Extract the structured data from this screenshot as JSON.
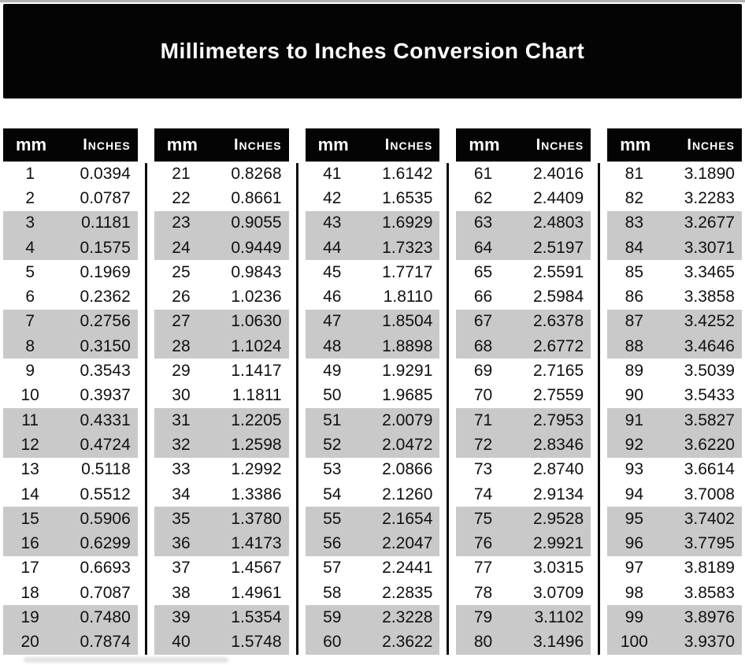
{
  "title": "Millimeters to Inches Conversion Chart",
  "table": {
    "col_mm": "mm",
    "col_inches": "Inches",
    "groups": []
  },
  "colors": {
    "banner_bg": "#040404",
    "header_bg": "#040404",
    "header_text": "#ffffff",
    "stripe_gray": "#c9c9c9",
    "text": "#111111"
  },
  "chart_data": {
    "type": "table",
    "title": "Millimeters to Inches Conversion Chart",
    "columns": [
      "mm",
      "Inches"
    ],
    "layout": "5 column-groups of 20 rows; rows shaded gray in pairs (rows 3-4, 7-8, 11-12, 15-16, 19-20 of each group)",
    "mm": [
      1,
      2,
      3,
      4,
      5,
      6,
      7,
      8,
      9,
      10,
      11,
      12,
      13,
      14,
      15,
      16,
      17,
      18,
      19,
      20,
      21,
      22,
      23,
      24,
      25,
      26,
      27,
      28,
      29,
      30,
      31,
      32,
      33,
      34,
      35,
      36,
      37,
      38,
      39,
      40,
      41,
      42,
      43,
      44,
      45,
      46,
      47,
      48,
      49,
      50,
      51,
      52,
      53,
      54,
      55,
      56,
      57,
      58,
      59,
      60,
      61,
      62,
      63,
      64,
      65,
      66,
      67,
      68,
      69,
      70,
      71,
      72,
      73,
      74,
      75,
      76,
      77,
      78,
      79,
      80,
      81,
      82,
      83,
      84,
      85,
      86,
      87,
      88,
      89,
      90,
      91,
      92,
      93,
      94,
      95,
      96,
      97,
      98,
      99,
      100
    ],
    "inches": [
      "0.0394",
      "0.0787",
      "0.1181",
      "0.1575",
      "0.1969",
      "0.2362",
      "0.2756",
      "0.3150",
      "0.3543",
      "0.3937",
      "0.4331",
      "0.4724",
      "0.5118",
      "0.5512",
      "0.5906",
      "0.6299",
      "0.6693",
      "0.7087",
      "0.7480",
      "0.7874",
      "0.8268",
      "0.8661",
      "0.9055",
      "0.9449",
      "0.9843",
      "1.0236",
      "1.0630",
      "1.1024",
      "1.1417",
      "1.1811",
      "1.2205",
      "1.2598",
      "1.2992",
      "1.3386",
      "1.3780",
      "1.4173",
      "1.4567",
      "1.4961",
      "1.5354",
      "1.5748",
      "1.6142",
      "1.6535",
      "1.6929",
      "1.7323",
      "1.7717",
      "1.8110",
      "1.8504",
      "1.8898",
      "1.9291",
      "1.9685",
      "2.0079",
      "2.0472",
      "2.0866",
      "2.1260",
      "2.1654",
      "2.2047",
      "2.2441",
      "2.2835",
      "2.3228",
      "2.3622",
      "2.4016",
      "2.4409",
      "2.4803",
      "2.5197",
      "2.5591",
      "2.5984",
      "2.6378",
      "2.6772",
      "2.7165",
      "2.7559",
      "2.7953",
      "2.8346",
      "2.8740",
      "2.9134",
      "2.9528",
      "2.9921",
      "3.0315",
      "3.0709",
      "3.1102",
      "3.1496",
      "3.1890",
      "3.2283",
      "3.2677",
      "3.3071",
      "3.3465",
      "3.3858",
      "3.4252",
      "3.4646",
      "3.5039",
      "3.5433",
      "3.5827",
      "3.6220",
      "3.6614",
      "3.7008",
      "3.7402",
      "3.7795",
      "3.8189",
      "3.8583",
      "3.8976",
      "3.9370"
    ]
  }
}
